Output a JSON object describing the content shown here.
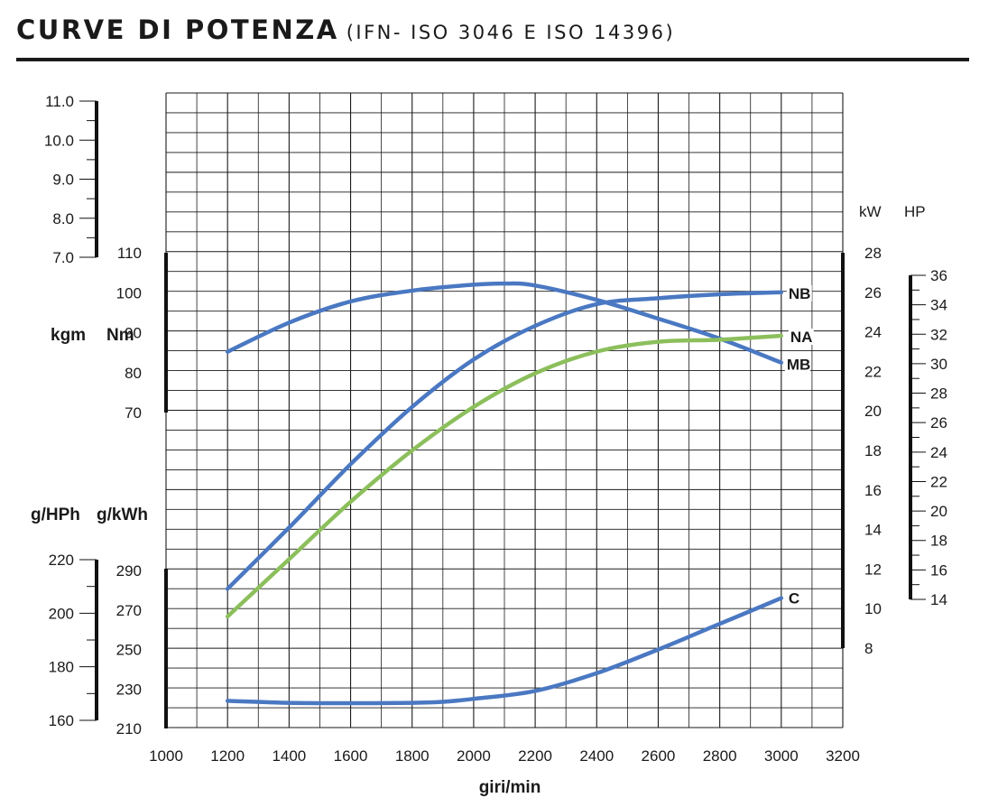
{
  "header": {
    "title": "CURVE DI POTENZA",
    "subtitle": "(IFN- ISO 3046 E ISO 14396)"
  },
  "colors": {
    "blue": "#4a78c2",
    "green": "#8cbf5c",
    "grid": "#1a1a1a",
    "axis": "#111111"
  },
  "chart_data": {
    "type": "line",
    "grid": true,
    "x": {
      "label": "giri/min",
      "range": [
        1000,
        3200
      ],
      "ticks": [
        "1000",
        "1200",
        "1400",
        "1600",
        "1800",
        "2000",
        "2200",
        "2400",
        "2600",
        "2800",
        "3000",
        "3200"
      ]
    },
    "torque": {
      "unit_left": "kgm",
      "unit_right": "Nm",
      "kgm_range": [
        7.0,
        11.0
      ],
      "kgm_ticks": [
        "7.0",
        "8.0",
        "9.0",
        "10.0",
        "11.0"
      ],
      "nm_range": [
        70,
        110
      ],
      "nm_ticks": [
        "70",
        "80",
        "90",
        "100",
        "110"
      ]
    },
    "power": {
      "unit_kw": "kW",
      "unit_hp": "HP",
      "kw_range": [
        8,
        28
      ],
      "kw_ticks": [
        "8",
        "10",
        "12",
        "14",
        "16",
        "18",
        "20",
        "22",
        "24",
        "26",
        "28"
      ],
      "hp_range": [
        14,
        36
      ],
      "hp_ticks": [
        "14",
        "16",
        "18",
        "20",
        "22",
        "24",
        "26",
        "28",
        "30",
        "32",
        "34",
        "36"
      ]
    },
    "consumption": {
      "unit_left": "g/HPh",
      "unit_right": "g/kWh",
      "ghph_range": [
        160,
        220
      ],
      "ghph_ticks": [
        "160",
        "180",
        "200",
        "220"
      ],
      "gkwh_range": [
        210,
        290
      ],
      "gkwh_ticks": [
        "210",
        "230",
        "250",
        "270",
        "290"
      ]
    },
    "series": [
      {
        "name": "MB",
        "axis": "Nm",
        "color": "blue",
        "x": [
          1200,
          1400,
          1600,
          1800,
          2000,
          2100,
          2200,
          2400,
          2600,
          2800,
          3000
        ],
        "values": [
          85.2,
          92.5,
          97.8,
          100.5,
          102.0,
          102.3,
          101.8,
          98.2,
          93.5,
          88.5,
          82.5
        ]
      },
      {
        "name": "NB",
        "axis": "kW",
        "color": "blue",
        "x": [
          1200,
          1400,
          1600,
          1800,
          2000,
          2200,
          2400,
          2600,
          2800,
          3000
        ],
        "values": [
          11.0,
          14.1,
          17.3,
          20.2,
          22.6,
          24.3,
          25.4,
          25.7,
          25.9,
          26.0
        ]
      },
      {
        "name": "NA",
        "axis": "kW",
        "color": "green",
        "x": [
          1200,
          1400,
          1600,
          1800,
          2000,
          2200,
          2400,
          2600,
          2800,
          3000
        ],
        "values": [
          9.6,
          12.5,
          15.4,
          18.0,
          20.2,
          21.9,
          23.0,
          23.5,
          23.6,
          23.8
        ]
      },
      {
        "name": "C",
        "axis": "gkWh",
        "color": "blue",
        "x": [
          1200,
          1400,
          1600,
          1800,
          1900,
          2000,
          2200,
          2400,
          2600,
          2800,
          3000
        ],
        "values": [
          224.0,
          223.0,
          222.8,
          223.0,
          223.5,
          225.0,
          229.0,
          238.0,
          250.0,
          263.0,
          276.0
        ]
      }
    ]
  }
}
